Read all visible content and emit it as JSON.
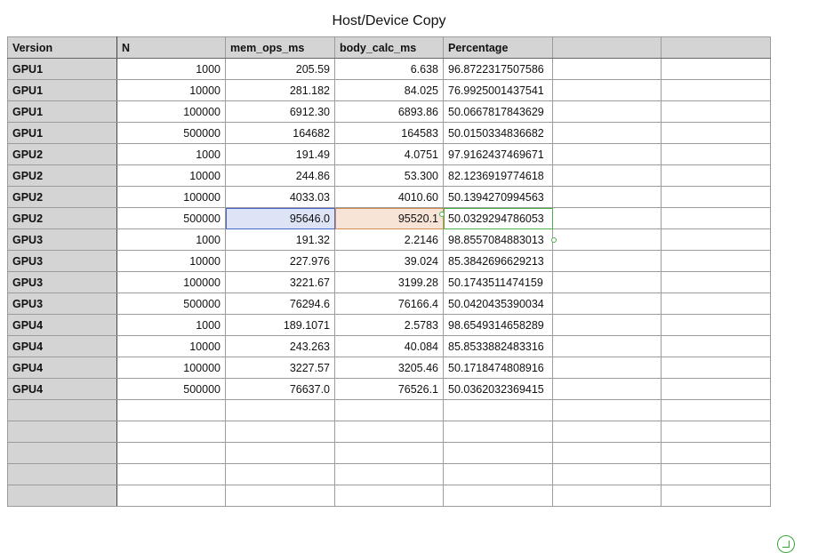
{
  "sheet": {
    "title": "Host/Device Copy",
    "headers": [
      "Version",
      "N",
      "mem_ops_ms",
      "body_calc_ms",
      "Percentage",
      "",
      ""
    ],
    "rows": [
      [
        "GPU1",
        "1000",
        "205.59",
        "6.638",
        "96.8722317507586",
        "",
        ""
      ],
      [
        "GPU1",
        "10000",
        "281.182",
        "84.025",
        "76.9925001437541",
        "",
        ""
      ],
      [
        "GPU1",
        "100000",
        "6912.30",
        "6893.86",
        "50.0667817843629",
        "",
        ""
      ],
      [
        "GPU1",
        "500000",
        "164682",
        "164583",
        "50.0150334836682",
        "",
        ""
      ],
      [
        "GPU2",
        "1000",
        "191.49",
        "4.0751",
        "97.9162437469671",
        "",
        ""
      ],
      [
        "GPU2",
        "10000",
        "244.86",
        "53.300",
        "82.1236919774618",
        "",
        ""
      ],
      [
        "GPU2",
        "100000",
        "4033.03",
        "4010.60",
        "50.1394270994563",
        "",
        ""
      ],
      [
        "GPU2",
        "500000",
        "95646.0",
        "95520.1",
        "50.0329294786053",
        "",
        ""
      ],
      [
        "GPU3",
        "1000",
        "191.32",
        "2.2146",
        "98.8557084883013",
        "",
        ""
      ],
      [
        "GPU3",
        "10000",
        "227.976",
        "39.024",
        "85.3842696629213",
        "",
        ""
      ],
      [
        "GPU3",
        "100000",
        "3221.67",
        "3199.28",
        "50.1743511474159",
        "",
        ""
      ],
      [
        "GPU3",
        "500000",
        "76294.6",
        "76166.4",
        "50.0420435390034",
        "",
        ""
      ],
      [
        "GPU4",
        "1000",
        "189.1071",
        "2.5783",
        "98.6549314658289",
        "",
        ""
      ],
      [
        "GPU4",
        "10000",
        "243.263",
        "40.084",
        "85.8533882483316",
        "",
        ""
      ],
      [
        "GPU4",
        "100000",
        "3227.57",
        "3205.46",
        "50.1718474808916",
        "",
        ""
      ],
      [
        "GPU4",
        "500000",
        "76637.0",
        "76526.1",
        "50.0362032369415",
        "",
        ""
      ],
      [
        "",
        "",
        "",
        "",
        "",
        "",
        ""
      ],
      [
        "",
        "",
        "",
        "",
        "",
        "",
        ""
      ],
      [
        "",
        "",
        "",
        "",
        "",
        "",
        ""
      ],
      [
        "",
        "",
        "",
        "",
        "",
        "",
        ""
      ],
      [
        "",
        "",
        "",
        "",
        "",
        "",
        ""
      ]
    ],
    "formula_highlight": {
      "row": 7,
      "source_cells": [
        2,
        3
      ],
      "selected_cell": 4,
      "colors": {
        "source_a": "#4a66c8",
        "source_b": "#d08e55",
        "selected": "#4caf50"
      }
    }
  },
  "icons": {
    "resize_handle": "corner-resize-icon"
  }
}
